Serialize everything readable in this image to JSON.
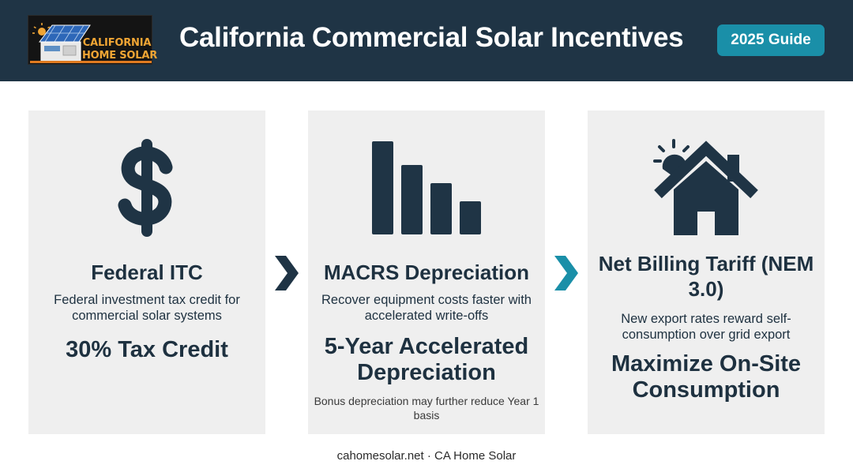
{
  "header": {
    "logo_line1": "CALIFORNIA",
    "logo_line2": "HOME SOLAR",
    "title": "California Commercial Solar Incentives",
    "badge": "2025 Guide"
  },
  "cards": [
    {
      "icon": "dollar-icon",
      "title": "Federal ITC",
      "description": "Federal investment tax credit for commercial solar systems",
      "highlight": "30% Tax Credit"
    },
    {
      "icon": "bar-chart-icon",
      "title": "MACRS Depreciation",
      "description": "Recover equipment costs faster with accelerated write-offs",
      "highlight": "5-Year Accelerated Depreciation",
      "note": "Bonus depreciation may further reduce Year 1 basis"
    },
    {
      "icon": "solar-house-icon",
      "title": "Net Billing Tariff (NEM 3.0)",
      "description": "New export rates reward self-consumption over grid export",
      "highlight": "Maximize On-Site Consumption"
    }
  ],
  "arrows": [
    "chevron-right-icon",
    "chevron-right-icon"
  ],
  "colors": {
    "header_bg": "#1f3445",
    "badge_bg": "#1a8fa8",
    "card_bg": "#efefef",
    "text_dark": "#1e3140",
    "arrow_dark": "#1f3445",
    "arrow_teal": "#1a8fa8",
    "logo_orange": "#f0a534"
  },
  "footer": "cahomesolar.net · CA Home Solar"
}
